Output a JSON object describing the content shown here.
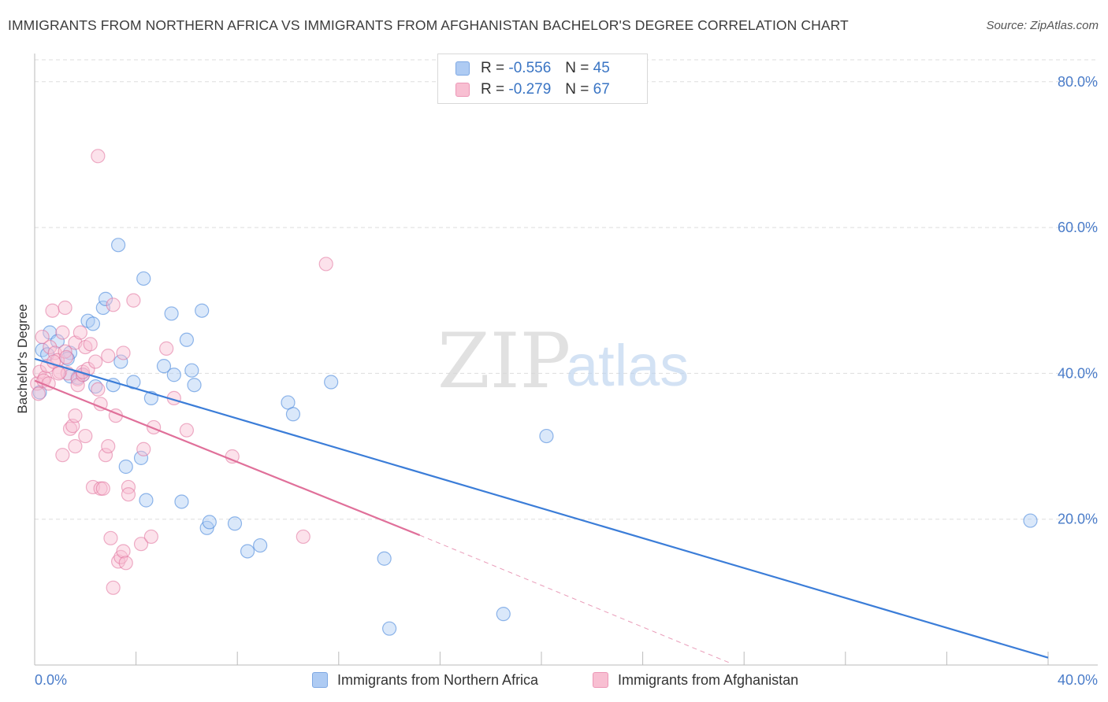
{
  "title": "IMMIGRANTS FROM NORTHERN AFRICA VS IMMIGRANTS FROM AFGHANISTAN BACHELOR'S DEGREE CORRELATION CHART",
  "source": "Source: ZipAtlas.com",
  "watermark": {
    "zip": "ZIP",
    "atlas": "atlas"
  },
  "legend": [
    {
      "r_label": "R =",
      "r_value": "-0.556",
      "n_label": "N =",
      "n_value": "45",
      "color": "#aecbf3"
    },
    {
      "r_label": "R =",
      "r_value": "-0.279",
      "n_label": "N =",
      "n_value": "67",
      "color": "#f8bfd2"
    }
  ],
  "chart_data": {
    "type": "scatter",
    "title": "IMMIGRANTS FROM NORTHERN AFRICA VS IMMIGRANTS FROM AFGHANISTAN BACHELOR'S DEGREE CORRELATION CHART",
    "xlabel": "",
    "ylabel": "Bachelor's Degree",
    "xlim": [
      0,
      40
    ],
    "ylim": [
      0,
      83
    ],
    "x_ticks": [
      0,
      4,
      8,
      12,
      16,
      20,
      24,
      28,
      32,
      36,
      40
    ],
    "x_tick_labels": [
      {
        "value": 0,
        "label": "0.0%"
      },
      {
        "value": 40,
        "label": "40.0%"
      }
    ],
    "y_tick_labels": [
      {
        "value": 20,
        "label": "20.0%"
      },
      {
        "value": 40,
        "label": "40.0%"
      },
      {
        "value": 60,
        "label": "60.0%"
      },
      {
        "value": 80,
        "label": "80.0%"
      }
    ],
    "grid": true,
    "series": [
      {
        "name": "Immigrants from Northern Africa",
        "color": "#3b7dd8",
        "fill": "#aecbf3",
        "trend": {
          "x0": 0,
          "y0": 42.0,
          "x1": 40,
          "y1": 1.0
        },
        "points": [
          [
            0.3,
            43.2
          ],
          [
            0.6,
            45.6
          ],
          [
            0.9,
            44.4
          ],
          [
            0.5,
            42.6
          ],
          [
            1.4,
            42.8
          ],
          [
            1.3,
            42.0
          ],
          [
            1.4,
            39.6
          ],
          [
            1.9,
            39.8
          ],
          [
            2.1,
            47.2
          ],
          [
            2.3,
            46.8
          ],
          [
            2.7,
            49.0
          ],
          [
            2.8,
            50.2
          ],
          [
            3.1,
            38.4
          ],
          [
            3.3,
            57.6
          ],
          [
            3.4,
            41.6
          ],
          [
            3.6,
            27.2
          ],
          [
            3.9,
            38.8
          ],
          [
            4.2,
            28.4
          ],
          [
            4.3,
            53.0
          ],
          [
            4.4,
            22.6
          ],
          [
            4.6,
            36.6
          ],
          [
            5.1,
            41.0
          ],
          [
            5.4,
            48.2
          ],
          [
            5.5,
            39.8
          ],
          [
            5.8,
            22.4
          ],
          [
            6.0,
            44.6
          ],
          [
            6.2,
            40.4
          ],
          [
            6.3,
            38.4
          ],
          [
            6.6,
            48.6
          ],
          [
            6.8,
            18.8
          ],
          [
            6.9,
            19.6
          ],
          [
            7.9,
            19.4
          ],
          [
            8.4,
            15.6
          ],
          [
            8.9,
            16.4
          ],
          [
            10.0,
            36.0
          ],
          [
            10.2,
            34.4
          ],
          [
            11.7,
            38.8
          ],
          [
            13.8,
            14.6
          ],
          [
            14.0,
            5.0
          ],
          [
            18.5,
            7.0
          ],
          [
            20.2,
            31.4
          ],
          [
            39.3,
            19.8
          ],
          [
            0.2,
            37.4
          ],
          [
            1.7,
            39.4
          ],
          [
            2.4,
            38.2
          ]
        ]
      },
      {
        "name": "Immigrants from Afghanistan",
        "color": "#e0709a",
        "fill": "#f8bfd2",
        "trend": {
          "x0": 0,
          "y0": 39.0,
          "x1": 15.2,
          "y1": 17.8
        },
        "trend_dashed": {
          "x0": 15.2,
          "y0": 17.8,
          "x1": 27.5,
          "y1": 0.2
        },
        "points": [
          [
            0.1,
            38.6
          ],
          [
            0.2,
            40.2
          ],
          [
            0.3,
            45.0
          ],
          [
            0.4,
            39.4
          ],
          [
            0.5,
            41.0
          ],
          [
            0.6,
            43.6
          ],
          [
            0.7,
            48.6
          ],
          [
            0.8,
            42.8
          ],
          [
            0.9,
            41.8
          ],
          [
            1.0,
            40.2
          ],
          [
            1.1,
            28.8
          ],
          [
            1.1,
            45.6
          ],
          [
            1.2,
            49.0
          ],
          [
            1.2,
            43.0
          ],
          [
            1.3,
            40.0
          ],
          [
            1.4,
            32.4
          ],
          [
            1.5,
            32.8
          ],
          [
            1.6,
            44.2
          ],
          [
            1.6,
            34.2
          ],
          [
            1.6,
            30.0
          ],
          [
            1.7,
            39.2
          ],
          [
            1.7,
            38.4
          ],
          [
            1.8,
            45.6
          ],
          [
            1.9,
            39.8
          ],
          [
            1.9,
            40.2
          ],
          [
            2.0,
            43.6
          ],
          [
            2.0,
            31.4
          ],
          [
            2.1,
            40.6
          ],
          [
            2.2,
            44.0
          ],
          [
            2.3,
            24.4
          ],
          [
            2.4,
            41.6
          ],
          [
            2.5,
            37.8
          ],
          [
            2.6,
            35.8
          ],
          [
            2.6,
            24.2
          ],
          [
            2.7,
            24.2
          ],
          [
            2.8,
            28.8
          ],
          [
            2.9,
            42.4
          ],
          [
            2.9,
            30.0
          ],
          [
            3.0,
            17.4
          ],
          [
            3.1,
            49.4
          ],
          [
            3.1,
            10.6
          ],
          [
            3.2,
            34.2
          ],
          [
            3.3,
            14.2
          ],
          [
            3.4,
            14.8
          ],
          [
            3.5,
            42.8
          ],
          [
            3.5,
            15.6
          ],
          [
            3.6,
            14.0
          ],
          [
            3.7,
            24.4
          ],
          [
            3.7,
            23.4
          ],
          [
            3.9,
            50.0
          ],
          [
            4.2,
            16.6
          ],
          [
            4.3,
            29.6
          ],
          [
            4.6,
            17.6
          ],
          [
            4.7,
            32.6
          ],
          [
            5.2,
            43.4
          ],
          [
            5.5,
            36.6
          ],
          [
            6.0,
            32.2
          ],
          [
            7.8,
            28.6
          ],
          [
            11.5,
            55.0
          ],
          [
            10.6,
            17.6
          ],
          [
            2.5,
            69.8
          ],
          [
            0.15,
            37.2
          ],
          [
            0.35,
            39.0
          ],
          [
            0.55,
            38.6
          ],
          [
            0.75,
            41.6
          ],
          [
            0.95,
            40.0
          ],
          [
            1.25,
            42.2
          ]
        ]
      }
    ]
  }
}
